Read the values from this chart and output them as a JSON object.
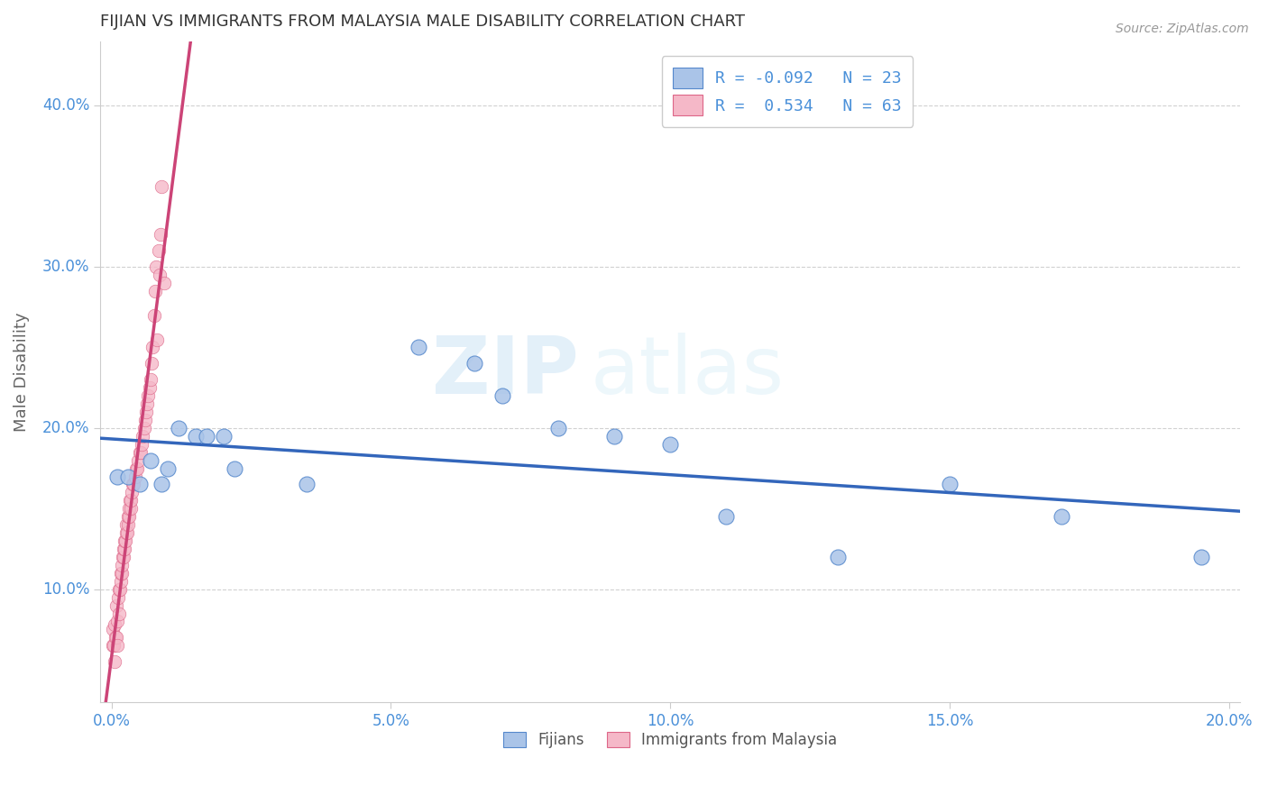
{
  "title": "FIJIAN VS IMMIGRANTS FROM MALAYSIA MALE DISABILITY CORRELATION CHART",
  "source": "Source: ZipAtlas.com",
  "ylabel": "Male Disability",
  "watermark_zip": "ZIP",
  "watermark_atlas": "atlas",
  "fijian": {
    "R": -0.092,
    "N": 23,
    "color": "#aac4e8",
    "edge_color": "#5588cc",
    "line_color": "#3366bb",
    "x": [
      0.001,
      0.003,
      0.005,
      0.007,
      0.009,
      0.01,
      0.012,
      0.015,
      0.017,
      0.02,
      0.022,
      0.035,
      0.055,
      0.065,
      0.07,
      0.08,
      0.09,
      0.1,
      0.11,
      0.13,
      0.15,
      0.17,
      0.195
    ],
    "y": [
      0.17,
      0.17,
      0.165,
      0.18,
      0.165,
      0.175,
      0.2,
      0.195,
      0.195,
      0.195,
      0.175,
      0.165,
      0.25,
      0.24,
      0.22,
      0.2,
      0.195,
      0.19,
      0.145,
      0.12,
      0.165,
      0.145,
      0.12
    ]
  },
  "malaysia": {
    "R": 0.534,
    "N": 63,
    "color": "#f5b8c8",
    "edge_color": "#dd6688",
    "line_color": "#cc4477",
    "x": [
      0.0002,
      0.0003,
      0.0004,
      0.0005,
      0.0006,
      0.0007,
      0.0008,
      0.0009,
      0.001,
      0.0011,
      0.0012,
      0.0013,
      0.0014,
      0.0015,
      0.0016,
      0.0017,
      0.0018,
      0.0019,
      0.002,
      0.0021,
      0.0022,
      0.0023,
      0.0024,
      0.0025,
      0.0026,
      0.0027,
      0.0028,
      0.0029,
      0.003,
      0.0031,
      0.0032,
      0.0033,
      0.0034,
      0.0035,
      0.0036,
      0.0038,
      0.004,
      0.0042,
      0.0044,
      0.0046,
      0.0048,
      0.005,
      0.0052,
      0.0054,
      0.0056,
      0.0058,
      0.006,
      0.0062,
      0.0064,
      0.0066,
      0.0068,
      0.007,
      0.0072,
      0.0074,
      0.0076,
      0.0078,
      0.008,
      0.0082,
      0.0084,
      0.0086,
      0.0088,
      0.009,
      0.0095
    ],
    "y": [
      0.065,
      0.075,
      0.065,
      0.078,
      0.055,
      0.07,
      0.09,
      0.07,
      0.065,
      0.08,
      0.095,
      0.1,
      0.085,
      0.1,
      0.105,
      0.11,
      0.11,
      0.115,
      0.12,
      0.12,
      0.125,
      0.125,
      0.13,
      0.13,
      0.135,
      0.14,
      0.135,
      0.14,
      0.145,
      0.145,
      0.15,
      0.155,
      0.15,
      0.155,
      0.16,
      0.165,
      0.165,
      0.17,
      0.175,
      0.175,
      0.18,
      0.185,
      0.185,
      0.19,
      0.195,
      0.2,
      0.205,
      0.21,
      0.215,
      0.22,
      0.225,
      0.23,
      0.24,
      0.25,
      0.27,
      0.285,
      0.3,
      0.255,
      0.31,
      0.295,
      0.32,
      0.35,
      0.29
    ]
  },
  "xlim": [
    -0.002,
    0.202
  ],
  "ylim": [
    0.03,
    0.44
  ],
  "xticks": [
    0.0,
    0.05,
    0.1,
    0.15,
    0.2
  ],
  "yticks": [
    0.1,
    0.2,
    0.3,
    0.4
  ],
  "ytick_labels": [
    "10.0%",
    "20.0%",
    "30.0%",
    "40.0%"
  ],
  "xtick_labels": [
    "0.0%",
    "5.0%",
    "10.0%",
    "15.0%",
    "20.0%"
  ],
  "background_color": "#ffffff",
  "grid_color": "#cccccc",
  "trend_extend_x": 0.04
}
